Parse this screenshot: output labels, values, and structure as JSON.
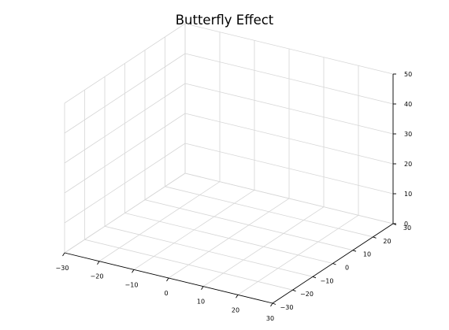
{
  "chart_data": {
    "type": "line3d",
    "title": "Butterfly Effect",
    "xlabel": "",
    "ylabel": "",
    "zlabel": "",
    "xlim": [
      -30,
      30
    ],
    "ylim": [
      -30,
      30
    ],
    "zlim": [
      0,
      50
    ],
    "xticks": [
      -30,
      -20,
      -10,
      0,
      10,
      20,
      30
    ],
    "yticks": [
      -30,
      -20,
      -10,
      0,
      10,
      20,
      30
    ],
    "zticks": [
      0,
      10,
      20,
      30,
      40,
      50
    ],
    "xtick_labels": [
      "−30",
      "−20",
      "−10",
      "0",
      "10",
      "20",
      "30"
    ],
    "ytick_labels": [
      "−30",
      "−20",
      "−10",
      "0",
      "10",
      "20",
      "30"
    ],
    "ztick_labels": [
      "0",
      "10",
      "20",
      "30",
      "40",
      "50"
    ],
    "grid": true,
    "series": []
  }
}
